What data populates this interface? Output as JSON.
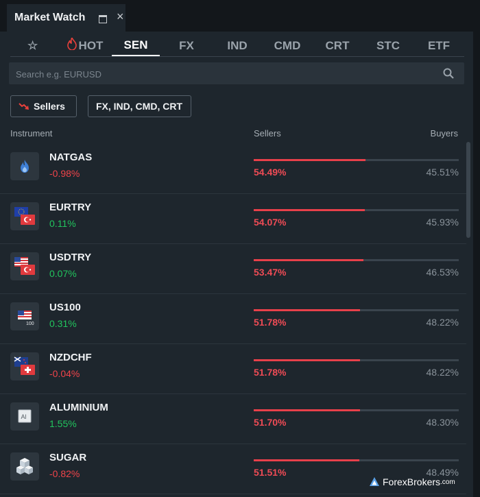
{
  "window": {
    "title": "Market Watch"
  },
  "tabs": [
    {
      "icon": "star-icon",
      "label": ""
    },
    {
      "icon": "flame-icon",
      "label": "HOT"
    },
    {
      "label": "SEN",
      "active": true
    },
    {
      "label": "FX"
    },
    {
      "label": "IND"
    },
    {
      "label": "CMD"
    },
    {
      "label": "CRT"
    },
    {
      "label": "STC"
    },
    {
      "label": "ETF"
    }
  ],
  "search": {
    "placeholder": "Search e.g. EURUSD",
    "value": ""
  },
  "filters": {
    "sort_label": "Sellers",
    "categories_label": "FX, IND, CMD, CRT"
  },
  "columns": {
    "instrument": "Instrument",
    "sellers": "Sellers",
    "buyers": "Buyers"
  },
  "instruments": [
    {
      "name": "NATGAS",
      "change": "-0.98%",
      "sellers": "54.49%",
      "buyers": "45.51%",
      "sellers_value": 54.49,
      "direction": "down",
      "icon": "gas-flame-icon"
    },
    {
      "name": "EURTRY",
      "change": "0.11%",
      "sellers": "54.07%",
      "buyers": "45.93%",
      "sellers_value": 54.07,
      "direction": "up",
      "icon": "eur-try-flags-icon"
    },
    {
      "name": "USDTRY",
      "change": "0.07%",
      "sellers": "53.47%",
      "buyers": "46.53%",
      "sellers_value": 53.47,
      "direction": "up",
      "icon": "usd-try-flags-icon"
    },
    {
      "name": "US100",
      "change": "0.31%",
      "sellers": "51.78%",
      "buyers": "48.22%",
      "sellers_value": 51.78,
      "direction": "up",
      "icon": "us-flag-100-icon",
      "icon_text": "100"
    },
    {
      "name": "NZDCHF",
      "change": "-0.04%",
      "sellers": "51.78%",
      "buyers": "48.22%",
      "sellers_value": 51.78,
      "direction": "down",
      "icon": "nzd-chf-flags-icon"
    },
    {
      "name": "ALUMINIUM",
      "change": "1.55%",
      "sellers": "51.70%",
      "buyers": "48.30%",
      "sellers_value": 51.7,
      "direction": "up",
      "icon": "aluminium-icon",
      "icon_text": "Al"
    },
    {
      "name": "SUGAR",
      "change": "-0.82%",
      "sellers": "51.51%",
      "buyers": "48.49%",
      "sellers_value": 51.51,
      "direction": "down",
      "icon": "sugar-cubes-icon"
    }
  ],
  "watermark": {
    "brand": "ForexBrokers",
    "suffix": ".com"
  },
  "colors": {
    "sellers": "#e8404a",
    "positive": "#22c55e",
    "negative": "#f0444a",
    "panel": "#1e262d"
  }
}
